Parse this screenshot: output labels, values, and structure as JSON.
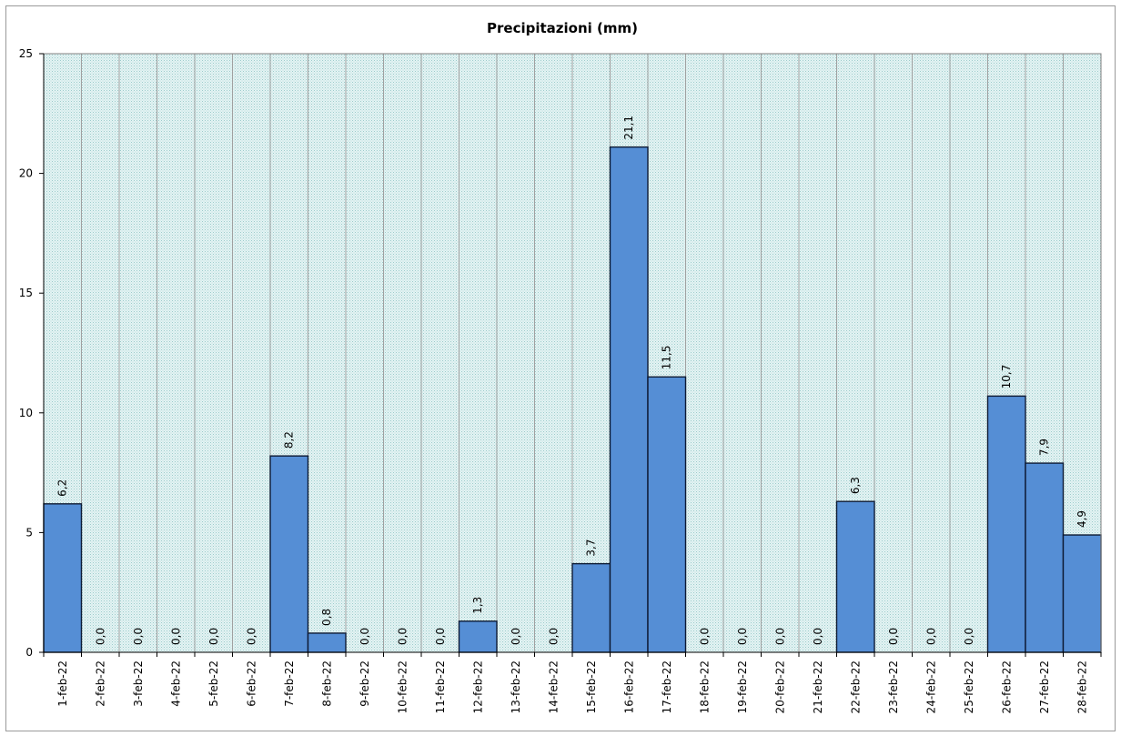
{
  "chart_data": {
    "type": "bar",
    "title": "Precipitazioni  (mm)",
    "xlabel": "",
    "ylabel": "",
    "ylim": [
      0,
      25
    ],
    "yticks": [
      "0",
      "5",
      "10",
      "15",
      "20",
      "25"
    ],
    "categories": [
      "1-feb-22",
      "2-feb-22",
      "3-feb-22",
      "4-feb-22",
      "5-feb-22",
      "6-feb-22",
      "7-feb-22",
      "8-feb-22",
      "9-feb-22",
      "10-feb-22",
      "11-feb-22",
      "12-feb-22",
      "13-feb-22",
      "14-feb-22",
      "15-feb-22",
      "16-feb-22",
      "17-feb-22",
      "18-feb-22",
      "19-feb-22",
      "20-feb-22",
      "21-feb-22",
      "22-feb-22",
      "23-feb-22",
      "24-feb-22",
      "25-feb-22",
      "26-feb-22",
      "27-feb-22",
      "28-feb-22"
    ],
    "values": [
      6.2,
      0.0,
      0.0,
      0.0,
      0.0,
      0.0,
      8.2,
      0.8,
      0.0,
      0.0,
      0.0,
      1.3,
      0.0,
      0.0,
      3.7,
      21.1,
      11.5,
      0.0,
      0.0,
      0.0,
      0.0,
      6.3,
      0.0,
      0.0,
      0.0,
      10.7,
      7.9,
      4.9
    ],
    "data_labels": [
      "6,2",
      "0,0",
      "0,0",
      "0,0",
      "0,0",
      "0,0",
      "8,2",
      "0,8",
      "0,0",
      "0,0",
      "0,0",
      "1,3",
      "0,0",
      "0,0",
      "3,7",
      "21,1",
      "11,5",
      "0,0",
      "0,0",
      "0,0",
      "0,0",
      "6,3",
      "0,0",
      "0,0",
      "0,0",
      "10,7",
      "7,9",
      "4,9"
    ],
    "grid": true,
    "legend": "none",
    "colors": {
      "bar": "#558ed5",
      "bar_border": "#0d1a33",
      "plot_bg": "#dcefef",
      "grid": "#a0a0a0"
    }
  }
}
